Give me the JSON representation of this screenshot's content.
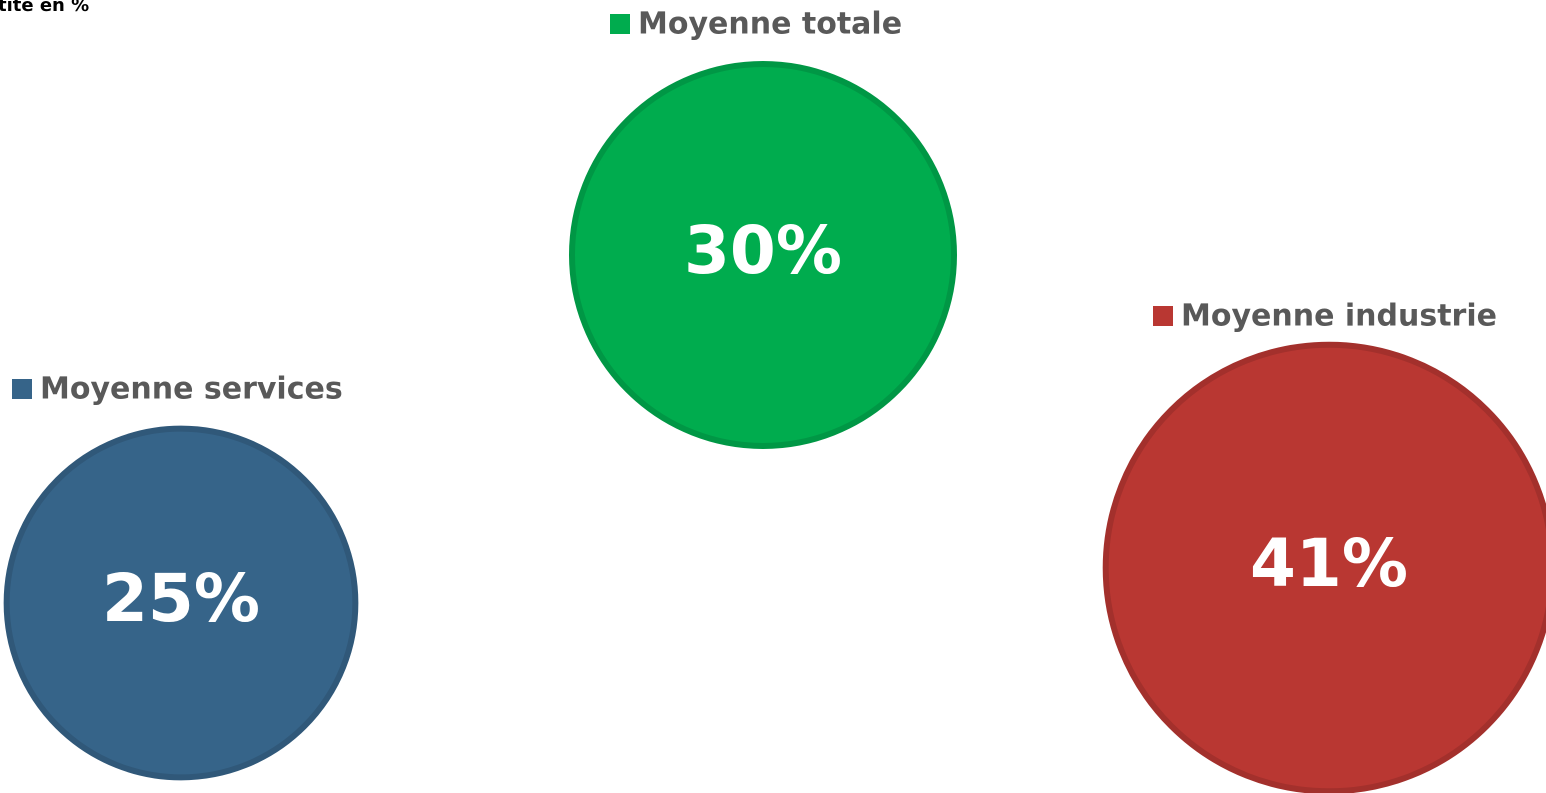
{
  "chart_data": {
    "type": "bubble",
    "title": "tité en %",
    "categories": [
      "Moyenne services",
      "Moyenne totale",
      "Moyenne industrie"
    ],
    "values": [
      25,
      30,
      41
    ],
    "value_labels": [
      "25%",
      "30%",
      "41%"
    ],
    "colors": [
      "#366489",
      "#00ac4e",
      "#b93732"
    ]
  }
}
